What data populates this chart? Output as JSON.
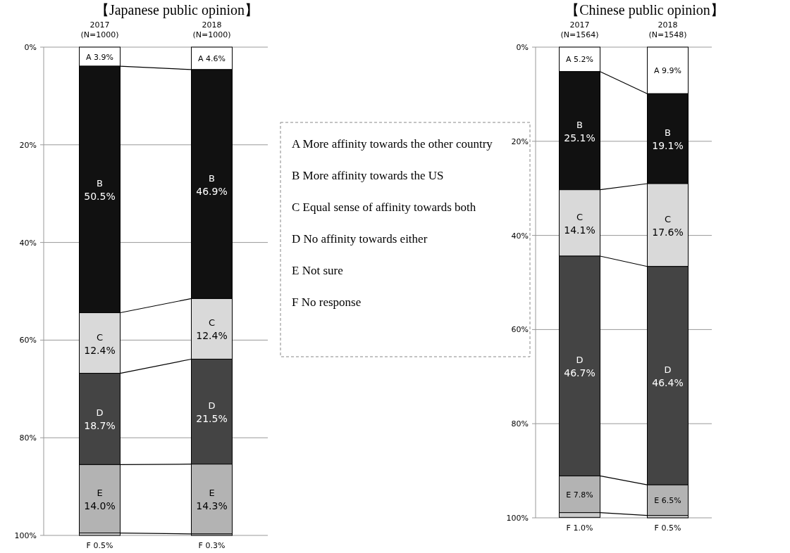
{
  "chart_data": [
    {
      "type": "bar",
      "title": "【Japanese public opinion】",
      "stacked": true,
      "grid": "y",
      "categories": [
        "2017 (N=1000)",
        "2018 (N=1000)"
      ],
      "ylim": [
        100,
        0
      ],
      "yticks": [
        {
          "value": 0,
          "label": "0%"
        },
        {
          "value": 20,
          "label": "20%"
        },
        {
          "value": 40,
          "label": "40%"
        },
        {
          "value": 60,
          "label": "60%"
        },
        {
          "value": 80,
          "label": "80%"
        },
        {
          "value": 100,
          "label": "100%"
        }
      ],
      "series": [
        {
          "color": "#ffffff",
          "values": [
            3.9,
            4.6
          ],
          "value_labels": [
            "A 3.9%",
            "A 4.6%"
          ]
        },
        {
          "color": "#111111",
          "values": [
            50.5,
            46.9
          ],
          "value_labels": [
            "B 50.5%",
            "B 46.9%"
          ]
        },
        {
          "color": "#d9d9d9",
          "values": [
            12.4,
            12.4
          ],
          "value_labels": [
            "C 12.4%",
            "C 12.4%"
          ]
        },
        {
          "color": "#444444",
          "values": [
            18.7,
            21.5
          ],
          "value_labels": [
            "D 18.7%",
            "D 21.5%"
          ]
        },
        {
          "color": "#b3b3b3",
          "values": [
            14.0,
            14.3
          ],
          "value_labels": [
            "E 14.0%",
            "E 14.3%"
          ]
        },
        {
          "color": "#cccccc",
          "values": [
            0.5,
            0.3
          ],
          "value_labels": [
            "F 0.5%",
            "F 0.3%"
          ]
        }
      ]
    },
    {
      "type": "other",
      "annotations": [
        "A More affinity towards the other country",
        "B More affinity towards the US",
        "C Equal sense of affinity towards both",
        "D No affinity towards either",
        "E Not sure",
        "F No response"
      ]
    },
    {
      "type": "bar",
      "title": "【Chinese public opinion】",
      "stacked": true,
      "grid": "y",
      "categories": [
        "2017 (N=1564)",
        "2018 (N=1548)"
      ],
      "ylim": [
        100,
        0
      ],
      "yticks": [
        {
          "value": 0,
          "label": "0%"
        },
        {
          "value": 20,
          "label": "20%"
        },
        {
          "value": 40,
          "label": "40%"
        },
        {
          "value": 60,
          "label": "60%"
        },
        {
          "value": 80,
          "label": "80%"
        },
        {
          "value": 100,
          "label": "100%"
        }
      ],
      "series": [
        {
          "color": "#ffffff",
          "values": [
            5.2,
            9.9
          ],
          "value_labels": [
            "A 5.2%",
            "A 9.9%"
          ]
        },
        {
          "color": "#111111",
          "values": [
            25.1,
            19.1
          ],
          "value_labels": [
            "B 25.1%",
            "B 19.1%"
          ]
        },
        {
          "color": "#d9d9d9",
          "values": [
            14.1,
            17.6
          ],
          "value_labels": [
            "C 14.1%",
            "C 17.6%"
          ]
        },
        {
          "color": "#444444",
          "values": [
            46.7,
            46.4
          ],
          "value_labels": [
            "D 46.7%",
            "D 46.4%"
          ]
        },
        {
          "color": "#b3b3b3",
          "values": [
            7.8,
            6.5
          ],
          "value_labels": [
            "E 7.8%",
            "E 6.5%"
          ]
        },
        {
          "color": "#cccccc",
          "values": [
            1.0,
            0.5
          ],
          "value_labels": [
            "F 1.0%",
            "F 0.5%"
          ]
        }
      ]
    }
  ]
}
